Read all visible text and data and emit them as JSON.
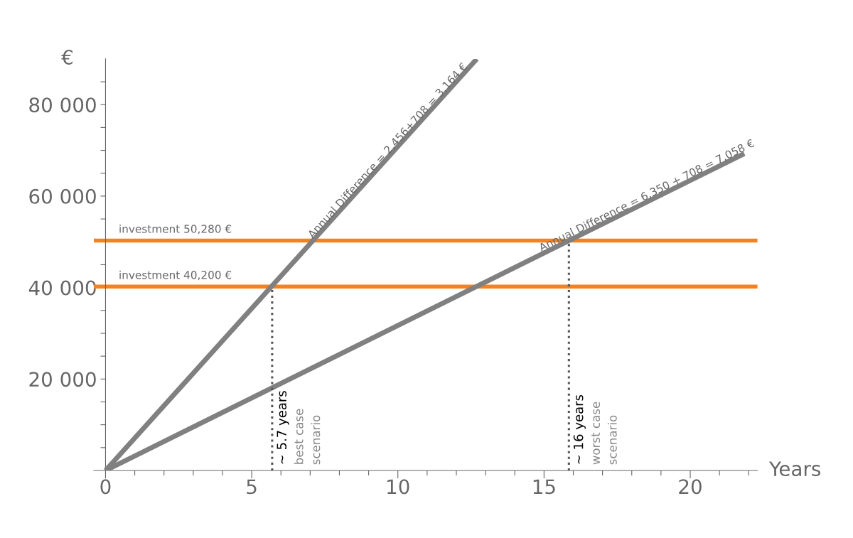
{
  "chart_data": {
    "type": "line",
    "xlabel": "Years",
    "ylabel": "€",
    "xlim": [
      -0.4,
      22.3
    ],
    "ylim": [
      0,
      90000
    ],
    "xticks": [
      0,
      {
        "value": 1,
        "label": null
      },
      {
        "value": 2,
        "label": null
      },
      {
        "value": 3,
        "label": null
      },
      {
        "value": 4,
        "label": null
      },
      5,
      {
        "value": 6,
        "label": null
      },
      {
        "value": 7,
        "label": null
      },
      {
        "value": 8,
        "label": null
      },
      {
        "value": 9,
        "label": null
      },
      10,
      {
        "value": 11,
        "label": null
      },
      {
        "value": 12,
        "label": null
      },
      {
        "value": 13,
        "label": null
      },
      {
        "value": 14,
        "label": null
      },
      15,
      {
        "value": 16,
        "label": null
      },
      {
        "value": 17,
        "label": null
      },
      {
        "value": 18,
        "label": null
      },
      {
        "value": 19,
        "label": null
      },
      20,
      {
        "value": 21,
        "label": null
      },
      {
        "value": 22,
        "label": null
      }
    ],
    "yticks": [
      {
        "value": 5000,
        "label": null
      },
      {
        "value": 10000,
        "label": null
      },
      {
        "value": 15000,
        "label": null
      },
      {
        "value": 20000,
        "label": "20 000"
      },
      {
        "value": 25000,
        "label": null
      },
      {
        "value": 30000,
        "label": null
      },
      {
        "value": 35000,
        "label": null
      },
      {
        "value": 40000,
        "label": "40 000"
      },
      {
        "value": 45000,
        "label": null
      },
      {
        "value": 50000,
        "label": null
      },
      {
        "value": 55000,
        "label": null
      },
      {
        "value": 60000,
        "label": "60 000"
      },
      {
        "value": 65000,
        "label": null
      },
      {
        "value": 70000,
        "label": null
      },
      {
        "value": 75000,
        "label": null
      },
      {
        "value": 80000,
        "label": "80 000"
      },
      {
        "value": 85000,
        "label": null
      }
    ],
    "series": [
      {
        "color": "#808080",
        "x": [
          0,
          12.7
        ],
        "values": [
          0,
          90000
        ]
      },
      {
        "color": "#808080",
        "x": [
          0,
          21.85
        ],
        "values": [
          0,
          69300
        ]
      }
    ],
    "ref_lines": [
      {
        "axis": "y",
        "value": 50280,
        "label": "investment 50,280 €",
        "color": "#f5821f",
        "line_style": "solid"
      },
      {
        "axis": "y",
        "value": 40200,
        "label": "investment 40,200 €",
        "color": "#f5821f",
        "line_style": "solid"
      },
      {
        "axis": "x",
        "value": 5.7,
        "label": "~ 5.7 years",
        "color": "#555555",
        "line_style": "dotted"
      },
      {
        "axis": "x",
        "value": 15.85,
        "label": "~ 16 years",
        "color": "#555555",
        "line_style": "dotted"
      }
    ],
    "annotations": [
      {
        "text": "Annual Difference = 2,456+708 = 3,164 €",
        "x": 9.8,
        "y": 69100
      },
      {
        "text": "Annual Difference = 6,350 + 708 = 7,058 €",
        "x": 18.6,
        "y": 59000
      },
      "best case\nscenario",
      "worst case\nscenario"
    ],
    "grid": false,
    "legend": false,
    "marker": "none",
    "line_style": "solid"
  }
}
